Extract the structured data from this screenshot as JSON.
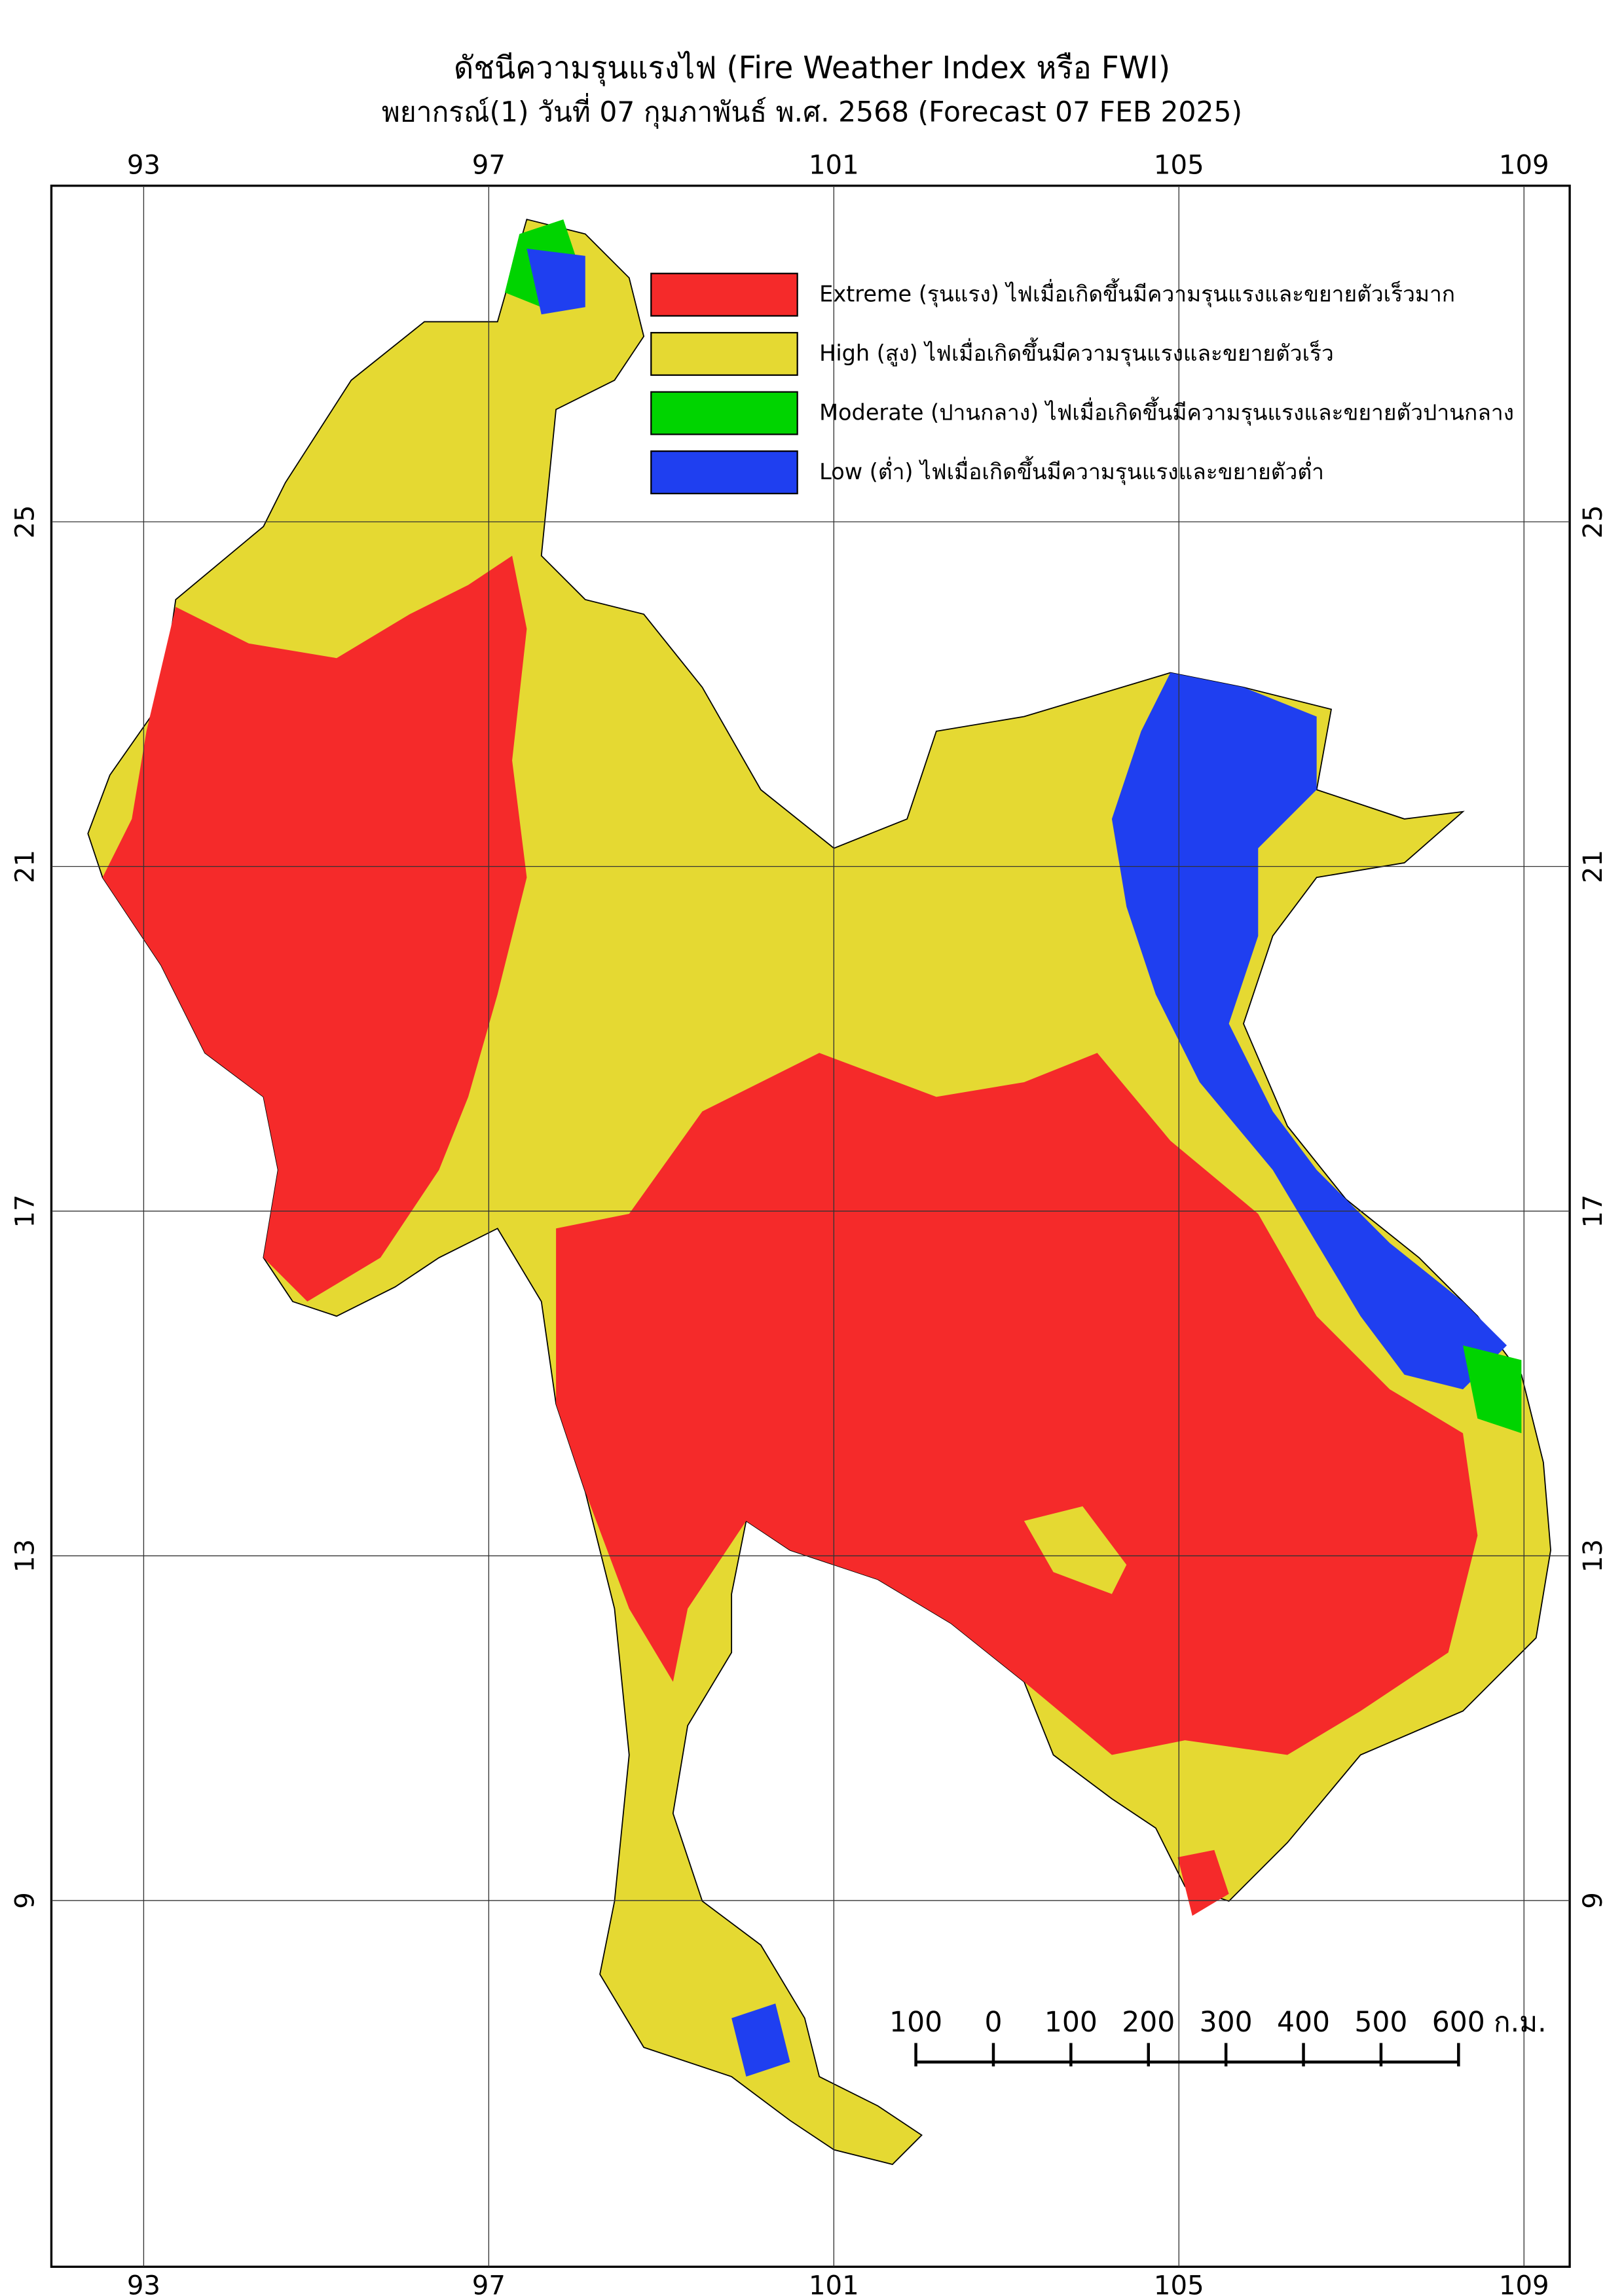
{
  "title": "ดัชนีความรุนแรงไฟ (Fire Weather Index หรือ FWI)",
  "subtitle": "พยากรณ์(1) วันที่ 07 กุมภาพันธ์ พ.ศ. 2568 (Forecast 07 FEB 2025)",
  "legend": [
    {
      "label": "Extreme (รุนแรง) ไฟเมื่อเกิดขึ้นมีความรุนแรงและขยายตัวเร็วมาก",
      "color": "#f52a2a"
    },
    {
      "label": "High (สูง) ไฟเมื่อเกิดขึ้นมีความรุนแรงและขยายตัวเร็ว",
      "color": "#e5d932"
    },
    {
      "label": "Moderate (ปานกลาง) ไฟเมื่อเกิดขึ้นมีความรุนแรงและขยายตัวปานกลาง",
      "color": "#00d400"
    },
    {
      "label": "Low (ต่ำ) ไฟเมื่อเกิดขึ้นมีความรุนแรงและขยายตัวต่ำ",
      "color": "#1f3ff0"
    }
  ],
  "map": {
    "lon_range": [
      91.93,
      109.53
    ],
    "lat_range": [
      28.9,
      4.75
    ],
    "lon_ticks": [
      93,
      97,
      101,
      105,
      109
    ],
    "lat_ticks": [
      25,
      21,
      17,
      13,
      9
    ]
  },
  "scale_bar": {
    "ticks": [
      {
        "value": -100,
        "label": "100"
      },
      0,
      100,
      200,
      300,
      400,
      500,
      600
    ],
    "unit": "ก.ม."
  }
}
